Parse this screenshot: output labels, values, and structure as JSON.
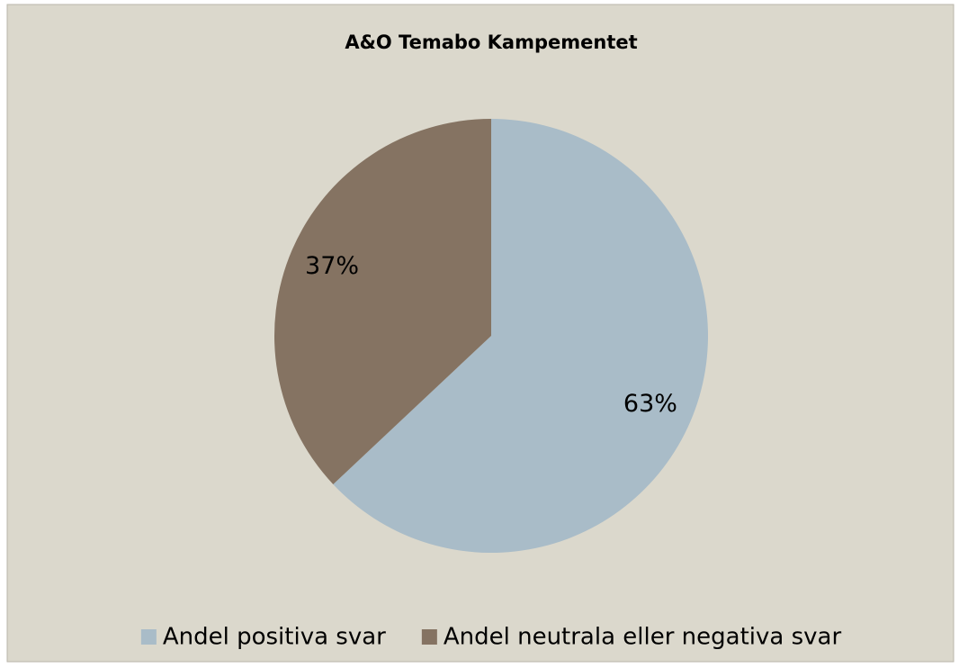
{
  "chart_data": {
    "type": "pie",
    "title": "A&O Temabo Kampementet",
    "categories": [
      "Andel positiva svar",
      "Andel neutrala eller negativa svar"
    ],
    "values": [
      63,
      37
    ],
    "value_labels": [
      "63%",
      "37%"
    ],
    "colors": [
      "#a9bcc8",
      "#857362"
    ],
    "legend": "bottom"
  }
}
